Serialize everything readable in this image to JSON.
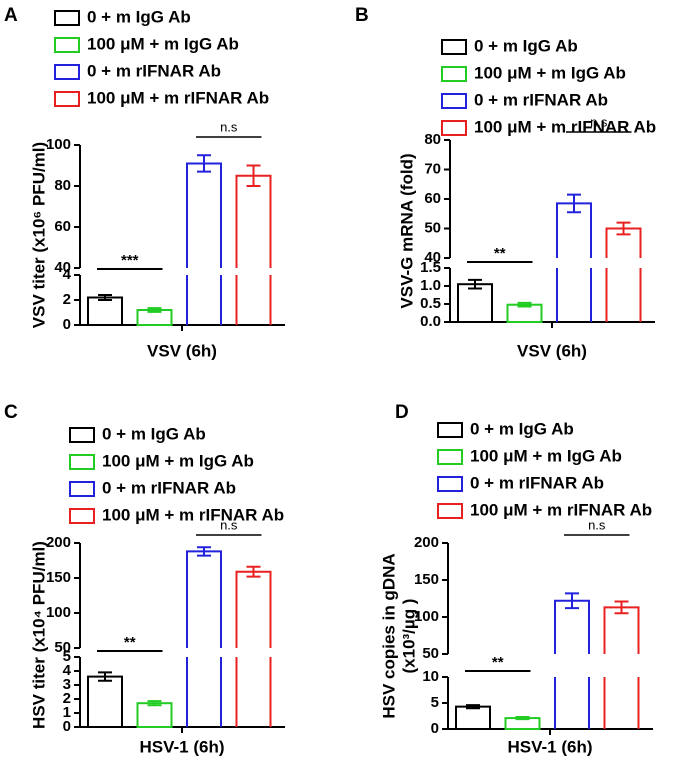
{
  "chart_data": [
    {
      "type": "bar",
      "panel": "A",
      "ylabel": [
        "VSV titer (x10⁶ PFU/ml)"
      ],
      "xlabel": "VSV (6h)",
      "series": [
        {
          "name": "0 + m IgG Ab",
          "color": "#000000",
          "values": [
            2.2
          ],
          "errors": [
            0.2
          ]
        },
        {
          "name": "100 μM + m IgG Ab",
          "color": "#22cc22",
          "values": [
            1.2
          ],
          "errors": [
            0.15
          ]
        },
        {
          "name": "0 + m rIFNAR Ab",
          "color": "#2222dd",
          "values": [
            91
          ],
          "errors": [
            4
          ]
        },
        {
          "name": "100 μM + m rIFNAR Ab",
          "color": "#e82020",
          "values": [
            85
          ],
          "errors": [
            5
          ]
        }
      ],
      "segments": [
        {
          "ylim": [
            0,
            4
          ],
          "yticks": [
            0,
            2,
            4
          ]
        },
        {
          "ylim": [
            40,
            100
          ],
          "yticks": [
            40,
            60,
            80,
            100
          ]
        }
      ],
      "sig_low": "***",
      "sig_high": "n.s"
    },
    {
      "type": "bar",
      "panel": "B",
      "ylabel": [
        "VSV-G mRNA (fold)"
      ],
      "xlabel": "VSV (6h)",
      "series": [
        {
          "name": "0 + m IgG Ab",
          "color": "#000000",
          "values": [
            1.05
          ],
          "errors": [
            0.12
          ]
        },
        {
          "name": "100 μM + m IgG Ab",
          "color": "#22cc22",
          "values": [
            0.48
          ],
          "errors": [
            0.05
          ]
        },
        {
          "name": "0 + m rIFNAR Ab",
          "color": "#2222dd",
          "values": [
            58.5
          ],
          "errors": [
            3
          ]
        },
        {
          "name": "100 μM + m rIFNAR Ab",
          "color": "#e82020",
          "values": [
            50
          ],
          "errors": [
            2
          ]
        }
      ],
      "segments": [
        {
          "ylim": [
            0,
            1.5
          ],
          "yticks": [
            {
              "value": 0,
              "label": "0.0"
            },
            0.5,
            {
              "value": 1,
              "label": "1.0"
            },
            1.5
          ]
        },
        {
          "ylim": [
            40,
            80
          ],
          "yticks": [
            40,
            50,
            60,
            70,
            80
          ]
        }
      ],
      "sig_low": "**",
      "sig_high": "n.s"
    },
    {
      "type": "bar",
      "panel": "C",
      "ylabel": [
        "HSV titer (x10⁴ PFU/ml)"
      ],
      "xlabel": "HSV-1 (6h)",
      "series": [
        {
          "name": "0 + m IgG Ab",
          "color": "#000000",
          "values": [
            3.6
          ],
          "errors": [
            0.3
          ]
        },
        {
          "name": "100 μM + m IgG Ab",
          "color": "#22cc22",
          "values": [
            1.7
          ],
          "errors": [
            0.15
          ]
        },
        {
          "name": "0 + m rIFNAR Ab",
          "color": "#2222dd",
          "values": [
            188
          ],
          "errors": [
            6
          ]
        },
        {
          "name": "100 μM + m rIFNAR Ab",
          "color": "#e82020",
          "values": [
            159
          ],
          "errors": [
            7
          ]
        }
      ],
      "segments": [
        {
          "ylim": [
            0,
            5
          ],
          "yticks": [
            0,
            1,
            2,
            3,
            4,
            5
          ]
        },
        {
          "ylim": [
            50,
            200
          ],
          "yticks": [
            50,
            100,
            150,
            200
          ]
        }
      ],
      "sig_low": "**",
      "sig_high": "n.s"
    },
    {
      "type": "bar",
      "panel": "D",
      "ylabel": [
        "HSV copies in gDNA",
        "(x10³/µg )"
      ],
      "xlabel": "HSV-1 (6h)",
      "series": [
        {
          "name": "0 + m IgG Ab",
          "color": "#000000",
          "values": [
            4.3
          ],
          "errors": [
            0.3
          ]
        },
        {
          "name": "100 μM + m IgG Ab",
          "color": "#22cc22",
          "values": [
            2.1
          ],
          "errors": [
            0.2
          ]
        },
        {
          "name": "0 + m rIFNAR Ab",
          "color": "#2222dd",
          "values": [
            122
          ],
          "errors": [
            10
          ]
        },
        {
          "name": "100 μM + m rIFNAR Ab",
          "color": "#e82020",
          "values": [
            113
          ],
          "errors": [
            8
          ]
        }
      ],
      "segments": [
        {
          "ylim": [
            0,
            10
          ],
          "yticks": [
            0,
            5,
            10
          ]
        },
        {
          "ylim": [
            50,
            200
          ],
          "yticks": [
            50,
            100,
            150,
            200
          ]
        }
      ],
      "sig_low": "**",
      "sig_high": "n.s"
    }
  ]
}
